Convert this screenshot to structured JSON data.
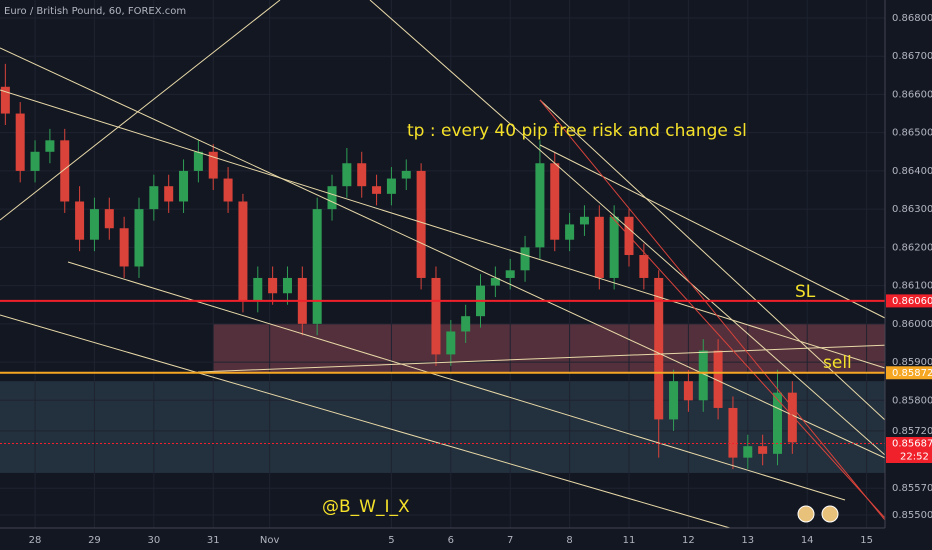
{
  "chart_data": {
    "type": "candlestick",
    "title": "Euro / British Pound, 60, FOREX.com",
    "annotations": [
      "tp : every 40 pip free risk and change sl",
      "SL",
      "sell",
      "@B_W_I_X"
    ],
    "up_color": "#2f9e55",
    "down_color": "#d9433a",
    "xlim": [
      -0.59,
      14.31
    ],
    "xticks": [
      {
        "value": 0,
        "label": "28"
      },
      {
        "value": 1,
        "label": "29"
      },
      {
        "value": 2,
        "label": "30"
      },
      {
        "value": 3,
        "label": "31"
      },
      {
        "value": 3.95,
        "label": "Nov"
      },
      {
        "value": 6,
        "label": "5"
      },
      {
        "value": 7,
        "label": "6"
      },
      {
        "value": 8,
        "label": "7"
      },
      {
        "value": 9,
        "label": "8"
      },
      {
        "value": 10,
        "label": "11"
      },
      {
        "value": 11,
        "label": "12"
      },
      {
        "value": 12,
        "label": "13"
      },
      {
        "value": 13,
        "label": "14"
      },
      {
        "value": 14,
        "label": "15"
      }
    ],
    "ylim": [
      0.85466,
      0.86847
    ],
    "yticks": [
      {
        "value": 0.868,
        "label": "0.86800"
      },
      {
        "value": 0.867,
        "label": "0.86700"
      },
      {
        "value": 0.866,
        "label": "0.86600"
      },
      {
        "value": 0.865,
        "label": "0.86500"
      },
      {
        "value": 0.864,
        "label": "0.86400"
      },
      {
        "value": 0.863,
        "label": "0.86300"
      },
      {
        "value": 0.862,
        "label": "0.86200"
      },
      {
        "value": 0.861,
        "label": "0.86100"
      },
      {
        "value": 0.86,
        "label": "0.86000"
      },
      {
        "value": 0.859,
        "label": "0.85900"
      },
      {
        "value": 0.858,
        "label": "0.85800"
      },
      {
        "value": 0.8572,
        "label": "0.85720"
      },
      {
        "value": 0.8557,
        "label": "0.85570"
      },
      {
        "value": 0.855,
        "label": "0.85500"
      }
    ],
    "levels": [
      {
        "value": 0.8606,
        "label": "0.86060",
        "color": "#f0212b"
      },
      {
        "value": 0.85872,
        "label": "0.85872",
        "color": "#f5a623"
      },
      {
        "value": 0.85687,
        "label": "0.85687",
        "color": "#f0212b",
        "countdown": "22:52"
      }
    ],
    "zones": [
      {
        "from_x": 3,
        "to_x": 14.31,
        "low": 0.8587,
        "high": 0.86,
        "color": "#6b3a45"
      },
      {
        "from_x": -0.59,
        "to_x": 14.31,
        "low": 0.8561,
        "high": 0.8585,
        "color": "#2a3a48"
      }
    ],
    "x": [
      -0.5,
      -0.25,
      0,
      0.25,
      0.5,
      0.75,
      1,
      1.25,
      1.5,
      1.75,
      2,
      2.25,
      2.5,
      2.75,
      3,
      3.25,
      3.5,
      3.75,
      4,
      4.25,
      4.5,
      4.75,
      5,
      5.25,
      5.5,
      5.75,
      6,
      6.25,
      6.5,
      6.75,
      7,
      7.25,
      7.5,
      7.75,
      8,
      8.25,
      8.5,
      8.75,
      9,
      9.25,
      9.5,
      9.75,
      10,
      10.25,
      10.5,
      10.75,
      11,
      11.25,
      11.5,
      11.75,
      12,
      12.25,
      12.5,
      12.75
    ],
    "open": [
      0.8662,
      0.8655,
      0.864,
      0.8645,
      0.8648,
      0.8632,
      0.8622,
      0.863,
      0.8625,
      0.8615,
      0.863,
      0.8636,
      0.8632,
      0.864,
      0.8645,
      0.8638,
      0.8632,
      0.8606,
      0.8612,
      0.8608,
      0.8612,
      0.86,
      0.863,
      0.8636,
      0.8642,
      0.8636,
      0.8634,
      0.8638,
      0.864,
      0.8612,
      0.8592,
      0.8598,
      0.8602,
      0.861,
      0.8612,
      0.8614,
      0.862,
      0.8642,
      0.8622,
      0.8626,
      0.8628,
      0.8612,
      0.8628,
      0.8618,
      0.8612,
      0.8575,
      0.8585,
      0.858,
      0.8593,
      0.8578,
      0.8565,
      0.8568,
      0.8566,
      0.8582
    ],
    "high": [
      0.8668,
      0.8658,
      0.8648,
      0.8651,
      0.8651,
      0.8636,
      0.8633,
      0.8633,
      0.8628,
      0.8633,
      0.8639,
      0.8639,
      0.8643,
      0.8648,
      0.8647,
      0.8641,
      0.8634,
      0.8615,
      0.8615,
      0.8615,
      0.8615,
      0.8633,
      0.8639,
      0.8646,
      0.8645,
      0.8639,
      0.8641,
      0.8643,
      0.8642,
      0.8615,
      0.8601,
      0.8605,
      0.8613,
      0.8615,
      0.8617,
      0.8623,
      0.8648,
      0.8645,
      0.8629,
      0.8631,
      0.8631,
      0.8631,
      0.863,
      0.8621,
      0.8614,
      0.8588,
      0.8588,
      0.8596,
      0.8596,
      0.8581,
      0.8571,
      0.8571,
      0.8588,
      0.8585
    ],
    "low": [
      0.8652,
      0.8637,
      0.8637,
      0.8642,
      0.8629,
      0.8619,
      0.8619,
      0.8622,
      0.8612,
      0.8612,
      0.8627,
      0.8629,
      0.8629,
      0.8637,
      0.8635,
      0.8629,
      0.8603,
      0.8603,
      0.8605,
      0.8605,
      0.8597,
      0.8597,
      0.8627,
      0.8633,
      0.8633,
      0.8631,
      0.8631,
      0.8635,
      0.8609,
      0.8589,
      0.8589,
      0.8595,
      0.8599,
      0.8607,
      0.8609,
      0.8611,
      0.8617,
      0.8619,
      0.8619,
      0.8623,
      0.8609,
      0.8609,
      0.8615,
      0.8609,
      0.8565,
      0.8572,
      0.8577,
      0.8577,
      0.8575,
      0.8562,
      0.8562,
      0.8563,
      0.8563,
      0.8566
    ],
    "close": [
      0.8655,
      0.864,
      0.8645,
      0.8648,
      0.8632,
      0.8622,
      0.863,
      0.8625,
      0.8615,
      0.863,
      0.8636,
      0.8632,
      0.864,
      0.8645,
      0.8638,
      0.8632,
      0.8606,
      0.8612,
      0.8608,
      0.8612,
      0.86,
      0.863,
      0.8636,
      0.8642,
      0.8636,
      0.8634,
      0.8638,
      0.864,
      0.8612,
      0.8592,
      0.8598,
      0.8602,
      0.861,
      0.8612,
      0.8614,
      0.862,
      0.8642,
      0.8622,
      0.8626,
      0.8628,
      0.8612,
      0.8628,
      0.8618,
      0.8612,
      0.8575,
      0.8585,
      0.858,
      0.8593,
      0.8578,
      0.8565,
      0.8568,
      0.8566,
      0.8582,
      0.8569
    ]
  }
}
